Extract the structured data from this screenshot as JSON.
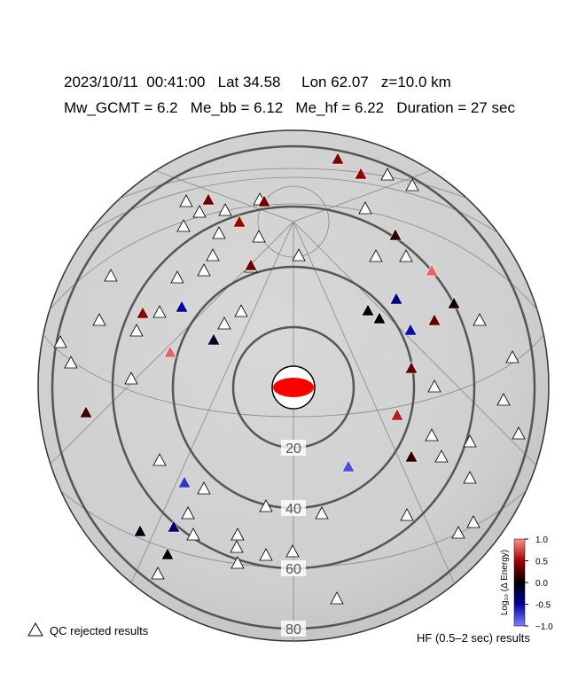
{
  "header": {
    "line1": "2023/10/11  00:41:00   Lat 34.58     Lon 62.07   z=10.0 km",
    "line2": "Mw_GCMT = 6.2   Me_bb = 6.12   Me_hf = 6.22   Duration = 27 sec"
  },
  "map": {
    "distance_rings": [
      20,
      40,
      60,
      80
    ],
    "station_values": [
      0.4,
      0.45,
      0.35,
      0.35,
      0.5,
      0.15,
      0.35,
      0.85,
      0.45,
      -0.5,
      -0.45,
      0.0,
      0.0,
      0.05,
      0.3,
      -0.55,
      -0.1,
      0.85,
      0.3,
      0.2,
      0.6,
      0.15,
      -0.8,
      -0.7,
      -0.05,
      -0.3,
      0.0
    ]
  },
  "colorbar": {
    "label": "Log₁₀ (Δ Energy)",
    "lim": [
      -1,
      1
    ],
    "ticks": [
      {
        "value": 1,
        "label": "1.0"
      },
      {
        "value": 0.5,
        "label": "0.5"
      },
      {
        "value": 0,
        "label": "0.0"
      },
      {
        "value": -0.5,
        "label": "-0.5"
      },
      {
        "value": -1,
        "label": "−1.0"
      }
    ]
  },
  "legend": {
    "rejected": "QC rejected results",
    "hf": "HF (0.5–2 sec) results"
  }
}
